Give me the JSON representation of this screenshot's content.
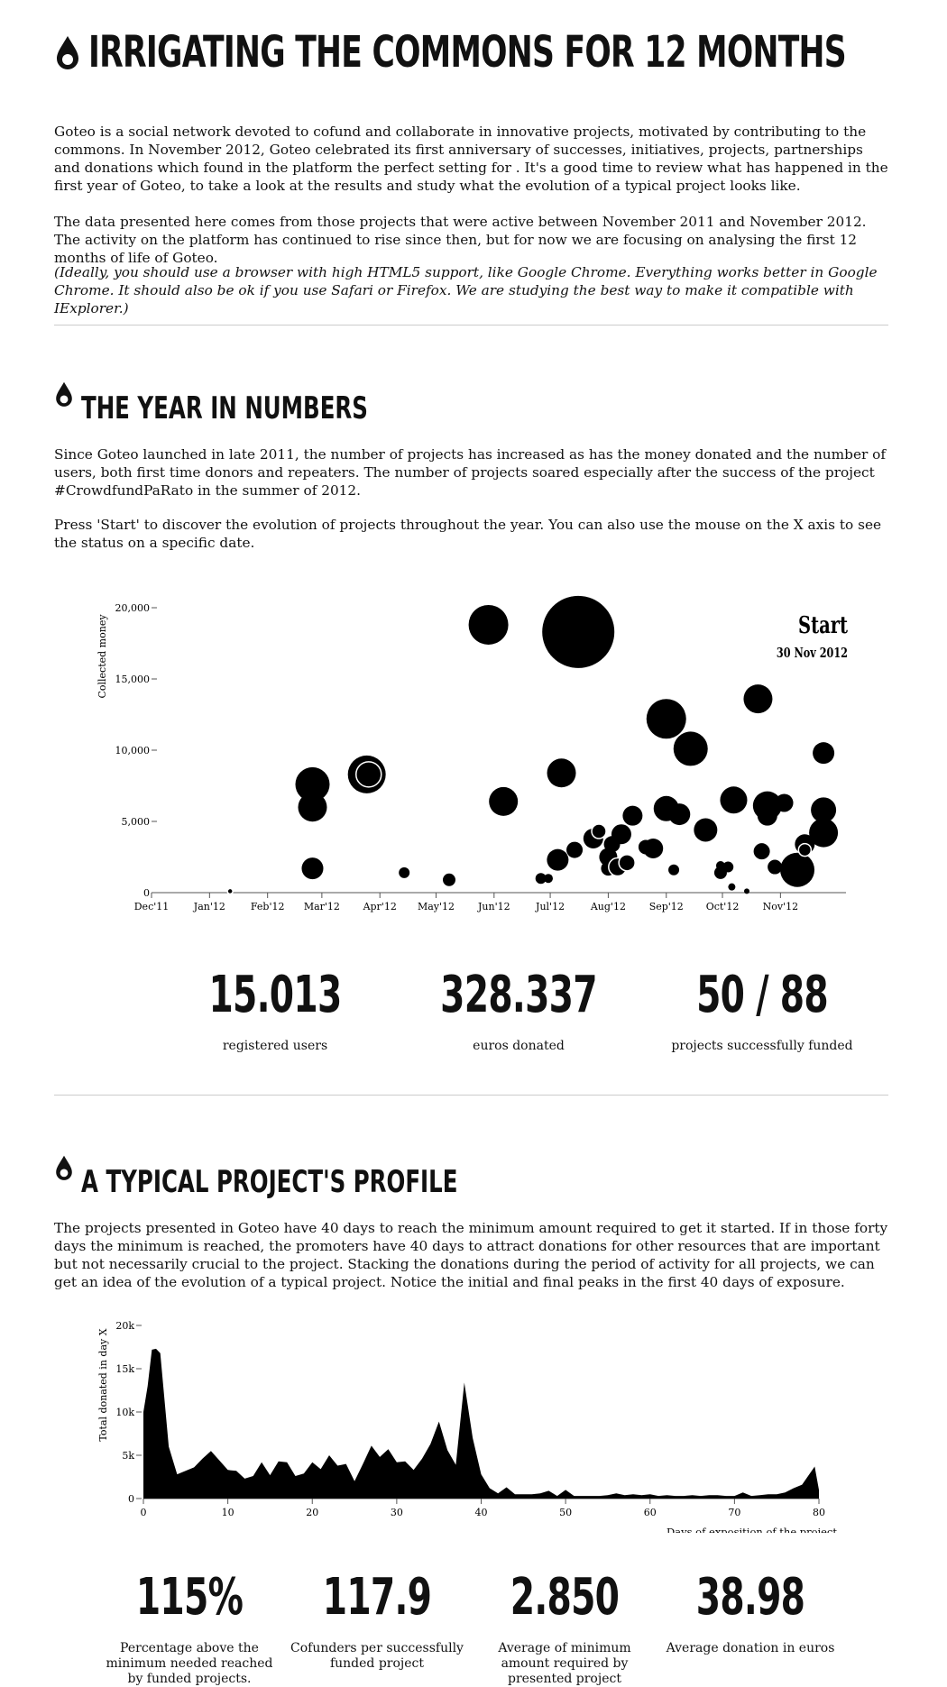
{
  "title": "IRRIGATING THE COMMONS FOR 12 MONTHS",
  "intro": {
    "p1": "Goteo is a social network devoted to cofund and collaborate in innovative projects, motivated by contributing to the commons. In November 2012, Goteo celebrated its first anniversary of successes, initiatives, projects, partnerships and donations which found in the platform the perfect setting for . It's a good time to review what has happened in the first year of Goteo, to take a look at the results and study what the evolution of a typical project looks like.",
    "p2": "The data presented here comes from those projects that were active between November 2011 and November 2012. The activity on the platform has continued to rise since then, but for now we are focusing on analysing the first 12 months of life of Goteo.",
    "p3": "(Ideally, you should use a browser with high HTML5 support, like Google Chrome. Everything works better in Google Chrome. It should also be ok if you use Safari or Firefox. We are studying the best way to make it compatible with IExplorer.)"
  },
  "section1": {
    "title": "THE YEAR IN NUMBERS",
    "p1": "Since Goteo launched in late 2011, the number of projects has increased as has the money donated and the number of users, both first time donors and repeaters. The number of projects soared especially after the success of the project #CrowdfundPaRato in the summer of 2012.",
    "p2": "Press 'Start' to discover the evolution of projects throughout the year. You can also use the mouse on the X axis to see the status on a specific date.",
    "start_label": "Start",
    "date_label": "30 Nov 2012",
    "stats": [
      {
        "value": "15.013",
        "label": "registered users"
      },
      {
        "value": "328.337",
        "label": "euros donated"
      },
      {
        "value": "50 / 88",
        "label": "projects successfully funded"
      }
    ]
  },
  "section2": {
    "title": "A TYPICAL PROJECT'S PROFILE",
    "p1": "The projects presented in Goteo have 40 days to reach the minimum amount required to get it started. If in those forty days the minimum is reached, the promoters have 40 days to attract donations for other resources that are important but not necessarily crucial to the project. Stacking the donations during the period of activity for all projects, we can get an idea of the evolution of a typical project. Notice the initial and final peaks in the first 40 days of exposure.",
    "stats": [
      {
        "value": "115%",
        "label": "Percentage above the minimum needed reached by funded projects."
      },
      {
        "value": "117.9",
        "label": "Cofunders per successfully funded project"
      },
      {
        "value": "2.850",
        "label": "Average of minimum amount required by presented project"
      },
      {
        "value": "38.98",
        "label": "Average donation in euros"
      }
    ]
  },
  "chart_data": [
    {
      "type": "scatter",
      "ylabel": "Collected money",
      "xlim": [
        "2011-12-01",
        "2012-12-06"
      ],
      "ylim": [
        0,
        20000
      ],
      "x_ticks": [
        "Dec'11",
        "Jan'12",
        "Feb'12",
        "Mar'12",
        "Apr'12",
        "May'12",
        "Jun'12",
        "Jul'12",
        "Aug'12",
        "Sep'12",
        "Oct'12",
        "Nov'12"
      ],
      "y_ticks": [
        "0",
        "5,000",
        "10,000",
        "15,000",
        "20,000"
      ],
      "points": [
        {
          "x": "2012-01-12",
          "y": 100,
          "r": 3,
          "ring": true
        },
        {
          "x": "2012-02-25",
          "y": 7600,
          "r": 19
        },
        {
          "x": "2012-02-25",
          "y": 6000,
          "r": 16
        },
        {
          "x": "2012-02-25",
          "y": 1700,
          "r": 12
        },
        {
          "x": "2012-03-25",
          "y": 8300,
          "r": 21
        },
        {
          "x": "2012-03-26",
          "y": 8300,
          "r": 14,
          "ring": true
        },
        {
          "x": "2012-04-14",
          "y": 1400,
          "r": 6
        },
        {
          "x": "2012-05-08",
          "y": 900,
          "r": 7
        },
        {
          "x": "2012-05-29",
          "y": 18800,
          "r": 22
        },
        {
          "x": "2012-06-06",
          "y": 6400,
          "r": 16
        },
        {
          "x": "2012-06-26",
          "y": 1000,
          "r": 6
        },
        {
          "x": "2012-06-30",
          "y": 1000,
          "r": 5
        },
        {
          "x": "2012-07-05",
          "y": 2300,
          "r": 12
        },
        {
          "x": "2012-07-07",
          "y": 8400,
          "r": 16
        },
        {
          "x": "2012-07-16",
          "y": 18300,
          "r": 40
        },
        {
          "x": "2012-07-14",
          "y": 3000,
          "r": 9
        },
        {
          "x": "2012-07-24",
          "y": 3800,
          "r": 11
        },
        {
          "x": "2012-07-27",
          "y": 4300,
          "r": 8,
          "ring": true
        },
        {
          "x": "2012-08-01",
          "y": 2500,
          "r": 10
        },
        {
          "x": "2012-08-03",
          "y": 3400,
          "r": 9
        },
        {
          "x": "2012-08-01",
          "y": 1700,
          "r": 8
        },
        {
          "x": "2012-08-06",
          "y": 1800,
          "r": 10,
          "ring": true
        },
        {
          "x": "2012-08-08",
          "y": 4100,
          "r": 11
        },
        {
          "x": "2012-08-11",
          "y": 2100,
          "r": 9,
          "ring": true
        },
        {
          "x": "2012-08-14",
          "y": 5400,
          "r": 11
        },
        {
          "x": "2012-08-21",
          "y": 3200,
          "r": 8
        },
        {
          "x": "2012-08-25",
          "y": 3100,
          "r": 11
        },
        {
          "x": "2012-09-01",
          "y": 12200,
          "r": 22
        },
        {
          "x": "2012-09-01",
          "y": 5900,
          "r": 14
        },
        {
          "x": "2012-09-05",
          "y": 1600,
          "r": 6
        },
        {
          "x": "2012-09-08",
          "y": 5500,
          "r": 12
        },
        {
          "x": "2012-09-14",
          "y": 10100,
          "r": 19
        },
        {
          "x": "2012-09-22",
          "y": 4400,
          "r": 13
        },
        {
          "x": "2012-09-30",
          "y": 1400,
          "r": 7
        },
        {
          "x": "2012-09-30",
          "y": 1900,
          "r": 5
        },
        {
          "x": "2012-10-04",
          "y": 1800,
          "r": 6
        },
        {
          "x": "2012-10-06",
          "y": 400,
          "r": 4
        },
        {
          "x": "2012-10-07",
          "y": 6500,
          "r": 15
        },
        {
          "x": "2012-10-14",
          "y": 100,
          "r": 3
        },
        {
          "x": "2012-10-20",
          "y": 13600,
          "r": 16
        },
        {
          "x": "2012-10-22",
          "y": 2900,
          "r": 9
        },
        {
          "x": "2012-10-25",
          "y": 6100,
          "r": 16
        },
        {
          "x": "2012-10-25",
          "y": 5400,
          "r": 11
        },
        {
          "x": "2012-10-29",
          "y": 1800,
          "r": 8
        },
        {
          "x": "2012-11-03",
          "y": 6300,
          "r": 10
        },
        {
          "x": "2012-11-10",
          "y": 1600,
          "r": 19
        },
        {
          "x": "2012-11-14",
          "y": 3400,
          "r": 11
        },
        {
          "x": "2012-11-14",
          "y": 3000,
          "r": 7,
          "ring": true
        },
        {
          "x": "2012-11-24",
          "y": 9800,
          "r": 12
        },
        {
          "x": "2012-11-24",
          "y": 5800,
          "r": 14
        },
        {
          "x": "2012-11-24",
          "y": 4200,
          "r": 16
        }
      ]
    },
    {
      "type": "area",
      "xlabel": "Days of exposition of the project",
      "ylabel": "Total donated in day X",
      "xlim": [
        0,
        80
      ],
      "ylim": [
        0,
        20000
      ],
      "x_ticks": [
        0,
        10,
        20,
        30,
        40,
        50,
        60,
        70,
        80
      ],
      "y_ticks": [
        "0",
        "5k",
        "10k",
        "15k",
        "20k"
      ],
      "x": [
        0,
        0.5,
        1,
        1.5,
        2,
        3,
        4,
        5,
        6,
        7,
        8,
        9,
        10,
        11,
        12,
        13,
        14,
        15,
        16,
        17,
        18,
        19,
        20,
        21,
        22,
        23,
        24,
        25,
        26,
        27,
        28,
        29,
        30,
        31,
        32,
        33,
        34,
        35,
        36,
        37,
        38,
        39,
        40,
        41,
        42,
        43,
        44,
        45,
        46,
        47,
        48,
        49,
        50,
        51,
        52,
        53,
        54,
        55,
        56,
        57,
        58,
        59,
        60,
        61,
        62,
        63,
        64,
        65,
        66,
        67,
        68,
        69,
        70,
        71,
        72,
        73,
        74,
        75,
        76,
        77,
        78,
        79,
        79.5,
        80
      ],
      "values": [
        10000,
        13000,
        17200,
        17300,
        16800,
        6000,
        2800,
        3200,
        3600,
        4600,
        5500,
        4400,
        3300,
        3200,
        2300,
        2600,
        4200,
        2700,
        4300,
        4200,
        2600,
        2900,
        4200,
        3400,
        5000,
        3800,
        4000,
        2000,
        4000,
        6100,
        4800,
        5700,
        4200,
        4300,
        3300,
        4600,
        6300,
        8900,
        5600,
        3900,
        13400,
        7000,
        2800,
        1200,
        600,
        1300,
        500,
        500,
        500,
        600,
        900,
        300,
        1000,
        300,
        300,
        300,
        300,
        400,
        600,
        400,
        500,
        400,
        500,
        300,
        400,
        300,
        300,
        400,
        300,
        400,
        400,
        300,
        300,
        700,
        300,
        400,
        500,
        500,
        700,
        1200,
        1600,
        3000,
        3700,
        1000
      ]
    }
  ]
}
